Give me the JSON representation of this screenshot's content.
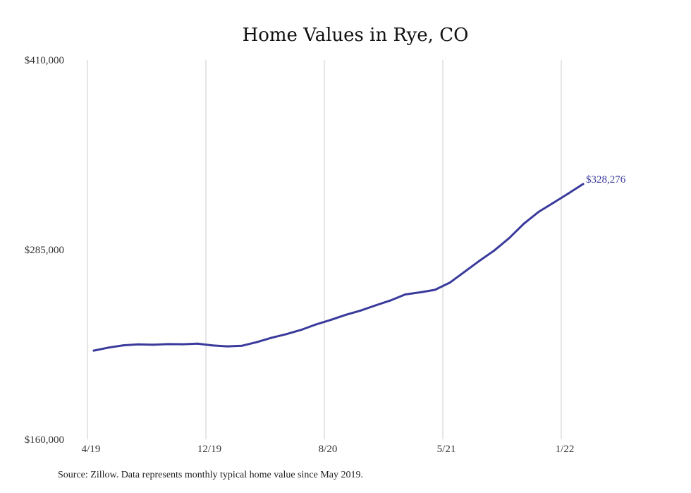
{
  "chart_data": {
    "type": "line",
    "title": "Home Values in Rye, CO",
    "xlabel": "",
    "ylabel": "",
    "ylim": [
      160000,
      410000
    ],
    "yticks": [
      "$410,000",
      "$285,000",
      "$160,000"
    ],
    "ytick_values": [
      410000,
      285000,
      160000
    ],
    "xticks": [
      "4/19",
      "12/19",
      "8/20",
      "5/21",
      "1/22"
    ],
    "grid": "vertical",
    "line_color": "#3a3a9c",
    "grid_color": "#cccccc",
    "series": [
      {
        "values": [
          218500,
          220500,
          222000,
          222600,
          222400,
          222800,
          222700,
          223100,
          221900,
          221300,
          221700,
          224100,
          227000,
          229400,
          232200,
          235800,
          238800,
          242100,
          244900,
          248300,
          251500,
          255500,
          256900,
          258500,
          263200,
          270400,
          277600,
          284400,
          292500,
          302100,
          309900,
          315900,
          322000,
          328276
        ]
      }
    ],
    "end_label": "$328,276",
    "source": "Source: Zillow. Data represents monthly typical home value since May 2019."
  }
}
